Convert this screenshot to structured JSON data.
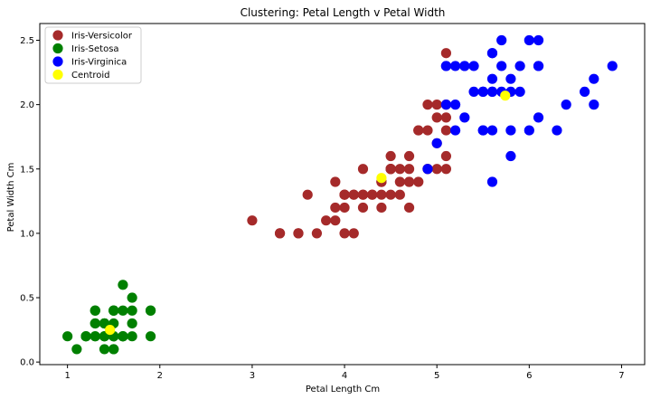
{
  "chart_data": {
    "type": "scatter",
    "title": "Clustering: Petal Length v Petal Width",
    "xlabel": "Petal Length Cm",
    "ylabel": "Petal Width Cm",
    "xlim": [
      0.7,
      7.25
    ],
    "ylim": [
      -0.02,
      2.63
    ],
    "x_ticks": [
      "1",
      "2",
      "3",
      "4",
      "5",
      "6",
      "7"
    ],
    "y_ticks": [
      "0.0",
      "0.5",
      "1.0",
      "1.5",
      "2.0",
      "2.5"
    ],
    "grid": false,
    "legend_position": "top-left",
    "series": [
      {
        "name": "Iris-Versicolor",
        "color": "#a52a2a",
        "points": [
          [
            4.7,
            1.4
          ],
          [
            4.5,
            1.5
          ],
          [
            4.9,
            1.5
          ],
          [
            4.0,
            1.3
          ],
          [
            4.6,
            1.5
          ],
          [
            4.5,
            1.3
          ],
          [
            4.7,
            1.6
          ],
          [
            3.3,
            1.0
          ],
          [
            4.6,
            1.3
          ],
          [
            3.9,
            1.4
          ],
          [
            3.5,
            1.0
          ],
          [
            4.2,
            1.5
          ],
          [
            4.0,
            1.0
          ],
          [
            4.7,
            1.4
          ],
          [
            3.6,
            1.3
          ],
          [
            4.4,
            1.4
          ],
          [
            4.5,
            1.5
          ],
          [
            4.1,
            1.0
          ],
          [
            4.5,
            1.5
          ],
          [
            3.9,
            1.1
          ],
          [
            4.8,
            1.8
          ],
          [
            4.0,
            1.3
          ],
          [
            4.9,
            1.5
          ],
          [
            4.7,
            1.2
          ],
          [
            4.3,
            1.3
          ],
          [
            4.4,
            1.4
          ],
          [
            4.8,
            1.4
          ],
          [
            5.0,
            1.7
          ],
          [
            4.5,
            1.5
          ],
          [
            3.5,
            1.0
          ],
          [
            3.8,
            1.1
          ],
          [
            3.7,
            1.0
          ],
          [
            3.9,
            1.2
          ],
          [
            5.1,
            1.6
          ],
          [
            4.5,
            1.5
          ],
          [
            4.5,
            1.6
          ],
          [
            4.7,
            1.5
          ],
          [
            4.4,
            1.3
          ],
          [
            4.1,
            1.3
          ],
          [
            4.0,
            1.3
          ],
          [
            4.4,
            1.2
          ],
          [
            4.6,
            1.4
          ],
          [
            4.0,
            1.2
          ],
          [
            3.3,
            1.0
          ],
          [
            4.2,
            1.3
          ],
          [
            4.2,
            1.2
          ],
          [
            4.2,
            1.3
          ],
          [
            4.3,
            1.3
          ],
          [
            3.0,
            1.1
          ],
          [
            4.1,
            1.3
          ],
          [
            5.1,
            1.9
          ],
          [
            5.1,
            2.0
          ],
          [
            4.9,
            1.8
          ],
          [
            5.1,
            2.4
          ],
          [
            5.0,
            2.0
          ],
          [
            5.1,
            1.8
          ],
          [
            4.8,
            1.8
          ],
          [
            5.0,
            1.5
          ],
          [
            5.0,
            1.9
          ],
          [
            4.9,
            2.0
          ],
          [
            5.1,
            1.5
          ],
          [
            4.4,
            1.4
          ]
        ]
      },
      {
        "name": "Iris-Setosa",
        "color": "#008000",
        "points": [
          [
            1.4,
            0.2
          ],
          [
            1.3,
            0.2
          ],
          [
            1.5,
            0.2
          ],
          [
            1.4,
            0.2
          ],
          [
            1.7,
            0.4
          ],
          [
            1.4,
            0.3
          ],
          [
            1.5,
            0.2
          ],
          [
            1.5,
            0.1
          ],
          [
            1.6,
            0.2
          ],
          [
            1.4,
            0.1
          ],
          [
            1.1,
            0.1
          ],
          [
            1.2,
            0.2
          ],
          [
            1.5,
            0.4
          ],
          [
            1.3,
            0.4
          ],
          [
            1.7,
            0.3
          ],
          [
            1.5,
            0.3
          ],
          [
            1.7,
            0.2
          ],
          [
            1.5,
            0.4
          ],
          [
            1.0,
            0.2
          ],
          [
            1.7,
            0.5
          ],
          [
            1.9,
            0.2
          ],
          [
            1.6,
            0.2
          ],
          [
            1.6,
            0.4
          ],
          [
            1.5,
            0.2
          ],
          [
            1.4,
            0.2
          ],
          [
            1.6,
            0.2
          ],
          [
            1.2,
            0.2
          ],
          [
            1.3,
            0.3
          ],
          [
            1.3,
            0.2
          ],
          [
            1.6,
            0.6
          ],
          [
            1.9,
            0.4
          ],
          [
            1.4,
            0.3
          ],
          [
            1.6,
            0.2
          ],
          [
            1.5,
            0.1
          ],
          [
            1.2,
            0.2
          ],
          [
            1.3,
            0.3
          ],
          [
            1.4,
            0.3
          ],
          [
            1.5,
            0.4
          ],
          [
            1.3,
            0.4
          ],
          [
            1.9,
            0.4
          ]
        ]
      },
      {
        "name": "Iris-Virginica",
        "color": "#0000ff",
        "points": [
          [
            6.0,
            2.5
          ],
          [
            5.9,
            2.1
          ],
          [
            5.6,
            1.8
          ],
          [
            5.8,
            2.2
          ],
          [
            6.6,
            2.1
          ],
          [
            6.3,
            1.8
          ],
          [
            5.8,
            1.8
          ],
          [
            6.1,
            2.5
          ],
          [
            5.3,
            1.9
          ],
          [
            5.5,
            2.1
          ],
          [
            5.2,
            2.0
          ],
          [
            5.3,
            2.3
          ],
          [
            5.5,
            1.8
          ],
          [
            6.7,
            2.2
          ],
          [
            6.9,
            2.3
          ],
          [
            5.7,
            2.3
          ],
          [
            6.7,
            2.0
          ],
          [
            5.7,
            2.1
          ],
          [
            6.0,
            1.8
          ],
          [
            5.6,
            2.1
          ],
          [
            5.8,
            1.6
          ],
          [
            6.1,
            1.9
          ],
          [
            6.4,
            2.0
          ],
          [
            5.6,
            2.2
          ],
          [
            5.6,
            1.4
          ],
          [
            6.1,
            2.3
          ],
          [
            5.6,
            2.4
          ],
          [
            5.5,
            1.8
          ],
          [
            5.4,
            2.1
          ],
          [
            5.6,
            2.4
          ],
          [
            5.1,
            2.3
          ],
          [
            5.9,
            2.3
          ],
          [
            5.7,
            2.5
          ],
          [
            5.2,
            2.3
          ],
          [
            5.4,
            2.3
          ],
          [
            6.1,
            2.3
          ],
          [
            5.6,
            2.1
          ],
          [
            5.5,
            2.1
          ],
          [
            5.8,
            2.1
          ],
          [
            4.9,
            1.5
          ],
          [
            5.0,
            1.7
          ],
          [
            5.1,
            2.3
          ],
          [
            5.3,
            2.3
          ],
          [
            5.1,
            2.0
          ],
          [
            5.2,
            1.8
          ]
        ]
      },
      {
        "name": "Centroid",
        "color": "#ffff00",
        "points": [
          [
            5.74,
            2.07
          ],
          [
            1.46,
            0.25
          ],
          [
            4.4,
            1.43
          ]
        ]
      }
    ]
  }
}
